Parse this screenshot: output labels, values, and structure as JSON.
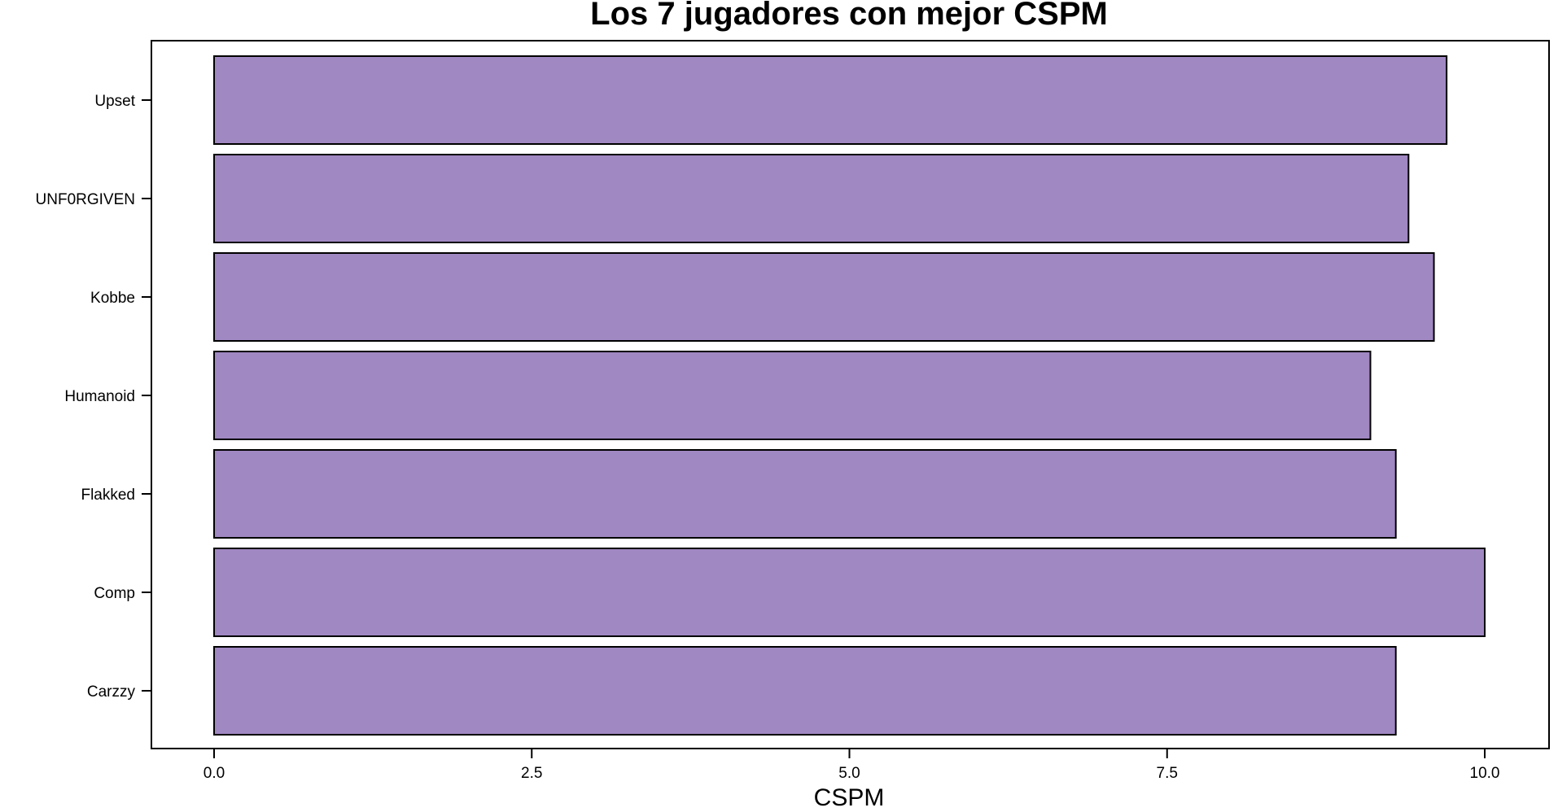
{
  "chart_data": {
    "type": "bar",
    "orientation": "horizontal",
    "title": "Los 7 jugadores con mejor CSPM",
    "xlabel": "CSPM",
    "ylabel": "",
    "categories": [
      "Upset",
      "UNF0RGIVEN",
      "Kobbe",
      "Humanoid",
      "Flakked",
      "Comp",
      "Carzzy"
    ],
    "values": [
      9.7,
      9.4,
      9.6,
      9.1,
      9.3,
      10.0,
      9.3
    ],
    "xlim": [
      0,
      10
    ],
    "xticks": [
      0.0,
      2.5,
      5.0,
      7.5,
      10.0
    ],
    "xtick_labels": [
      "0.0",
      "2.5",
      "5.0",
      "7.5",
      "10.0"
    ],
    "grid": false,
    "legend": "none",
    "bar_color": "#a088c2",
    "bar_edge_color": "#000000"
  }
}
